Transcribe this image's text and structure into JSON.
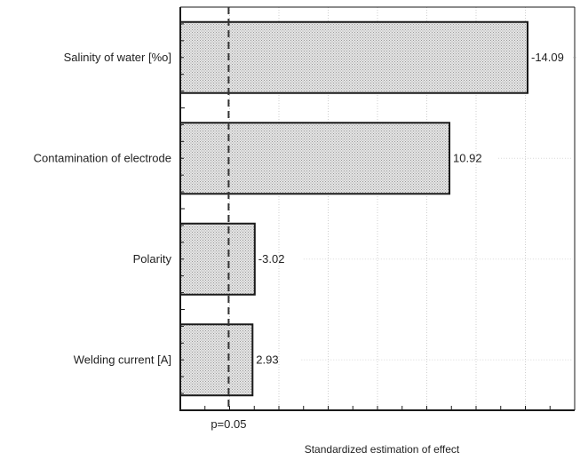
{
  "chart_data": {
    "type": "bar",
    "orientation": "horizontal",
    "categories": [
      "Salinity of water [%o]",
      "Contamination of electrode",
      "Polarity",
      "Welding current [A]"
    ],
    "values": [
      -14.09,
      10.92,
      -3.02,
      2.93
    ],
    "value_labels": [
      "-14.09",
      "10.92",
      "-3.02",
      "2.93"
    ],
    "magnitudes": [
      14.09,
      10.92,
      3.02,
      2.93
    ],
    "xlabel": "Standardized estimation of effect",
    "xlim": [
      0,
      16
    ],
    "threshold": {
      "value": 1.96,
      "label": "p=0.05"
    },
    "grid": "vertical-dotted",
    "bar_fill": "#d9d9d9",
    "bar_stroke": "#1a1a1a",
    "threshold_color": "#333333"
  }
}
